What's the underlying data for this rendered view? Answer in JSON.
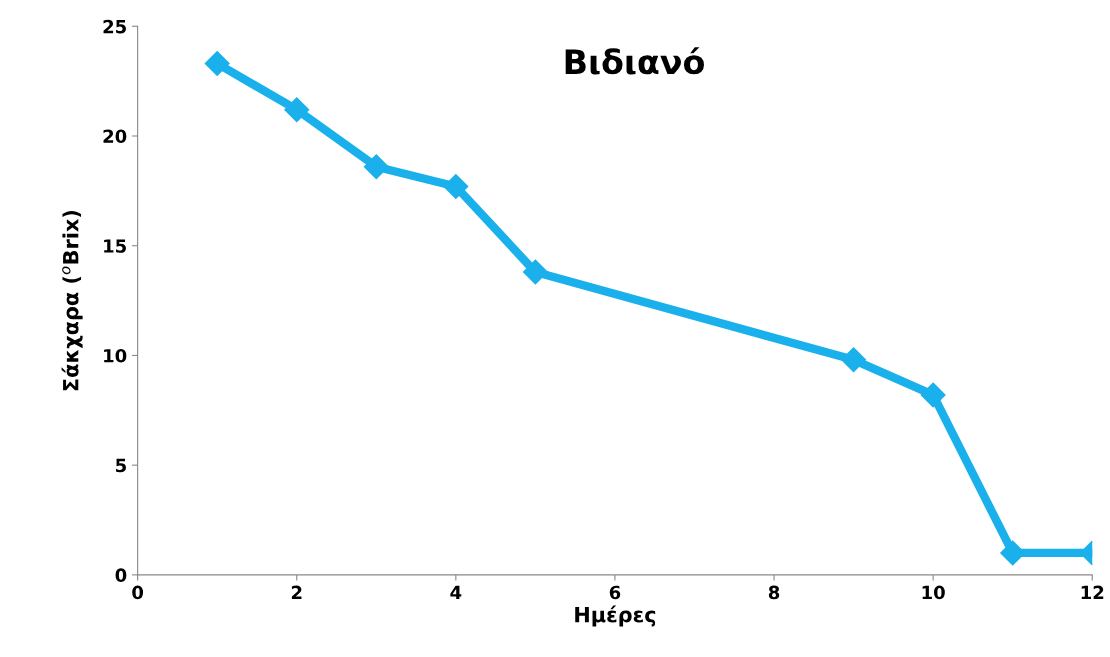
{
  "chart_data": {
    "type": "line",
    "title": "Βιδιανό",
    "xlabel": "Ημέρες",
    "ylabel": "Σάκχαρα ($^{o}$Brix)",
    "x": [
      1,
      2,
      3,
      4,
      5,
      9,
      10,
      11,
      12
    ],
    "series": [
      {
        "color": "#1ab0ec",
        "values": [
          23.3,
          21.2,
          18.6,
          17.7,
          13.8,
          9.8,
          8.2,
          1.0,
          1.0
        ]
      }
    ],
    "xlim": [
      0,
      12
    ],
    "xticks": [
      0,
      2,
      4,
      6,
      8,
      10,
      12
    ],
    "ylim": [
      0,
      25
    ],
    "yticks": [
      0,
      5,
      10,
      15,
      20,
      25
    ],
    "grid": false,
    "legend": false,
    "marker": "diamond",
    "line_style": "solid"
  }
}
